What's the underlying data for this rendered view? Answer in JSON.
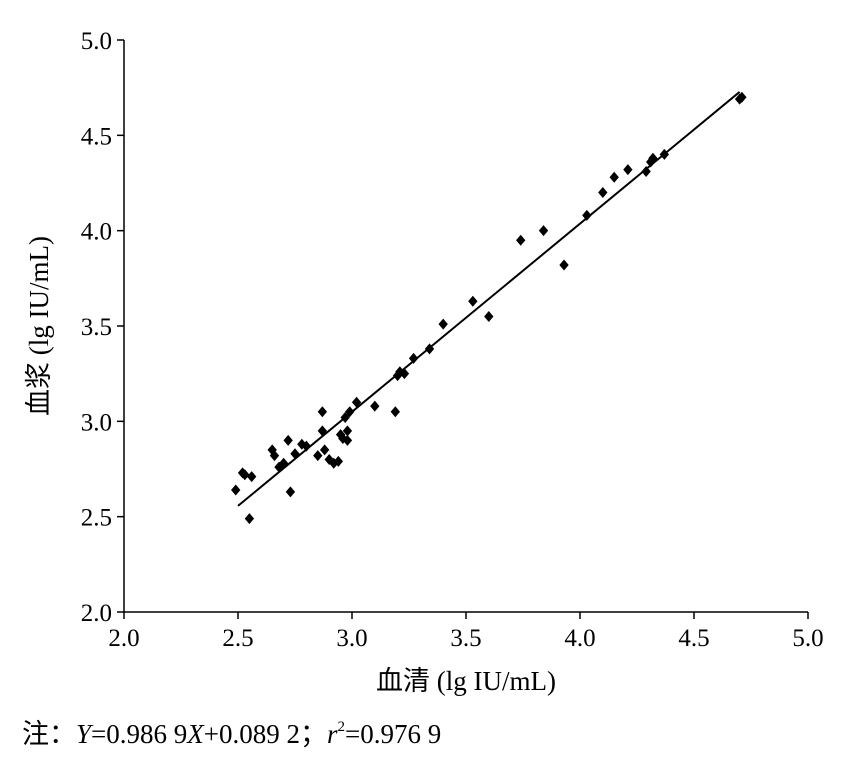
{
  "chart_data": {
    "type": "scatter",
    "title": "",
    "xlabel": "血清 (lg IU/mL)",
    "ylabel": "血浆 (lg IU/mL)",
    "xlim": [
      2.0,
      5.0
    ],
    "ylim": [
      2.0,
      5.0
    ],
    "x_ticks": [
      "2.0",
      "2.5",
      "3.0",
      "3.5",
      "4.0",
      "4.5",
      "5.0"
    ],
    "y_ticks": [
      "2.0",
      "2.5",
      "3.0",
      "3.5",
      "4.0",
      "4.5",
      "5.0"
    ],
    "grid": false,
    "legend": "none",
    "marker": "diamond",
    "marker_color": "#000000",
    "points": [
      [
        2.49,
        2.64
      ],
      [
        2.52,
        2.73
      ],
      [
        2.53,
        2.72
      ],
      [
        2.55,
        2.49
      ],
      [
        2.56,
        2.71
      ],
      [
        2.65,
        2.85
      ],
      [
        2.66,
        2.82
      ],
      [
        2.68,
        2.76
      ],
      [
        2.7,
        2.78
      ],
      [
        2.72,
        2.9
      ],
      [
        2.73,
        2.63
      ],
      [
        2.75,
        2.83
      ],
      [
        2.78,
        2.88
      ],
      [
        2.8,
        2.87
      ],
      [
        2.85,
        2.82
      ],
      [
        2.87,
        2.95
      ],
      [
        2.87,
        3.05
      ],
      [
        2.88,
        2.85
      ],
      [
        2.9,
        2.8
      ],
      [
        2.92,
        2.78
      ],
      [
        2.94,
        2.79
      ],
      [
        2.95,
        2.93
      ],
      [
        2.96,
        2.91
      ],
      [
        2.97,
        3.02
      ],
      [
        2.98,
        2.95
      ],
      [
        2.98,
        2.9
      ],
      [
        2.99,
        3.05
      ],
      [
        3.02,
        3.1
      ],
      [
        3.1,
        3.08
      ],
      [
        3.19,
        3.05
      ],
      [
        3.2,
        3.24
      ],
      [
        3.21,
        3.26
      ],
      [
        3.23,
        3.25
      ],
      [
        3.27,
        3.33
      ],
      [
        3.34,
        3.38
      ],
      [
        3.4,
        3.51
      ],
      [
        3.53,
        3.63
      ],
      [
        3.6,
        3.55
      ],
      [
        3.74,
        3.95
      ],
      [
        3.84,
        4.0
      ],
      [
        3.93,
        3.82
      ],
      [
        4.03,
        4.08
      ],
      [
        4.1,
        4.2
      ],
      [
        4.15,
        4.28
      ],
      [
        4.21,
        4.32
      ],
      [
        4.29,
        4.31
      ],
      [
        4.31,
        4.36
      ],
      [
        4.32,
        4.38
      ],
      [
        4.37,
        4.4
      ],
      [
        4.7,
        4.69
      ],
      [
        4.71,
        4.7
      ]
    ],
    "trendline": {
      "slope": 0.9869,
      "intercept": 0.0892,
      "x_range": [
        2.5,
        4.7
      ],
      "color": "#000000"
    }
  },
  "note": {
    "prefix": "注：",
    "eq_y": "Y",
    "eq_mid": "=0.986 9",
    "eq_x": "X",
    "eq_rest": "+0.089 2；",
    "r_symbol": "r",
    "r_exp": "2",
    "r_value": "=0.976 9"
  }
}
